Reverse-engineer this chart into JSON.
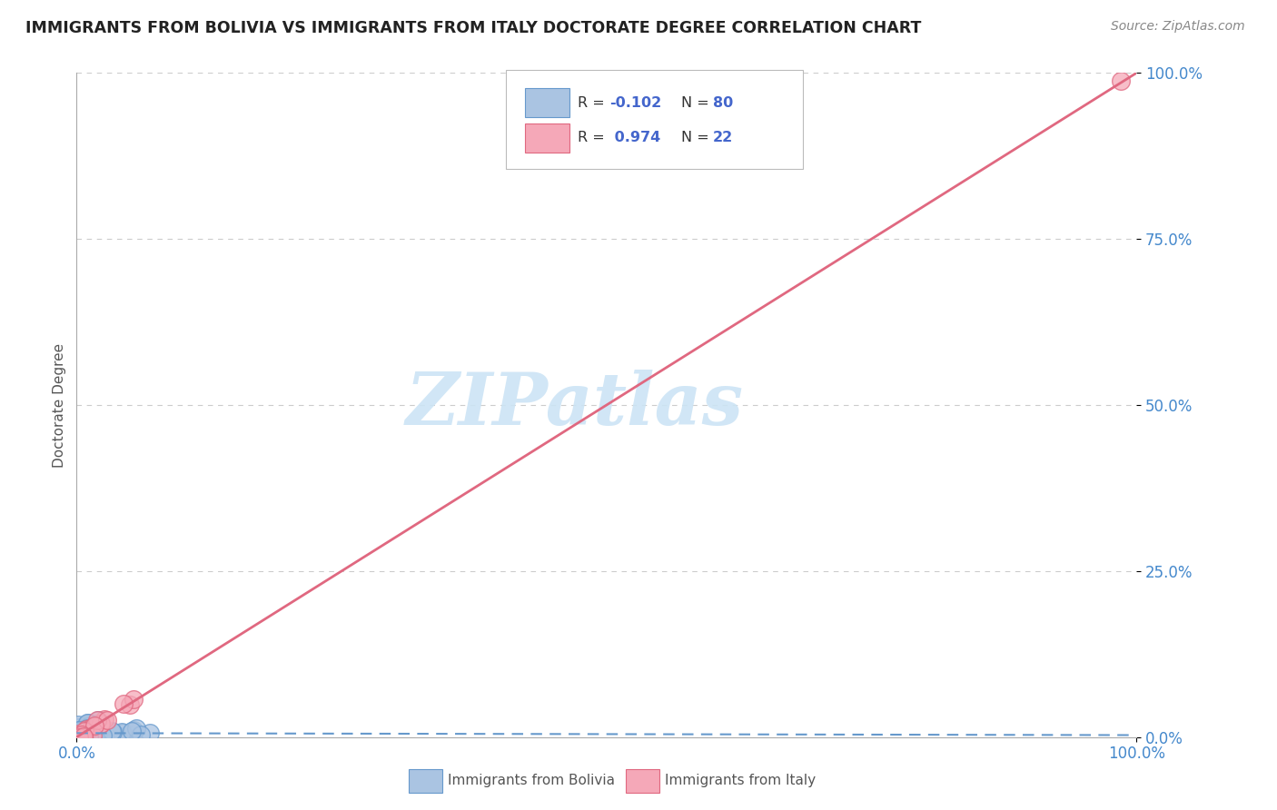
{
  "title": "IMMIGRANTS FROM BOLIVIA VS IMMIGRANTS FROM ITALY DOCTORATE DEGREE CORRELATION CHART",
  "source": "Source: ZipAtlas.com",
  "ylabel": "Doctorate Degree",
  "xlim": [
    0,
    1
  ],
  "ylim": [
    0,
    1
  ],
  "ytick_positions": [
    0,
    0.25,
    0.5,
    0.75,
    1.0
  ],
  "ytick_labels": [
    "0.0%",
    "25.0%",
    "50.0%",
    "75.0%",
    "100.0%"
  ],
  "xtick_positions": [
    0,
    1
  ],
  "xtick_labels": [
    "0.0%",
    "100.0%"
  ],
  "bolivia_R": -0.102,
  "bolivia_N": 80,
  "italy_R": 0.974,
  "italy_N": 22,
  "bolivia_face_color": "#aac4e2",
  "bolivia_edge_color": "#6699cc",
  "italy_face_color": "#f5a8b8",
  "italy_edge_color": "#e06880",
  "bolivia_trend_color": "#6699cc",
  "italy_trend_color": "#e06880",
  "watermark_color": "#cce4f5",
  "background_color": "#ffffff",
  "grid_color": "#cccccc",
  "title_color": "#222222",
  "axis_tick_color": "#4488cc",
  "axis_label_color": "#555555",
  "legend_text_color": "#333333",
  "legend_value_color": "#4466cc",
  "source_color": "#888888",
  "bottom_legend_color": "#555555"
}
